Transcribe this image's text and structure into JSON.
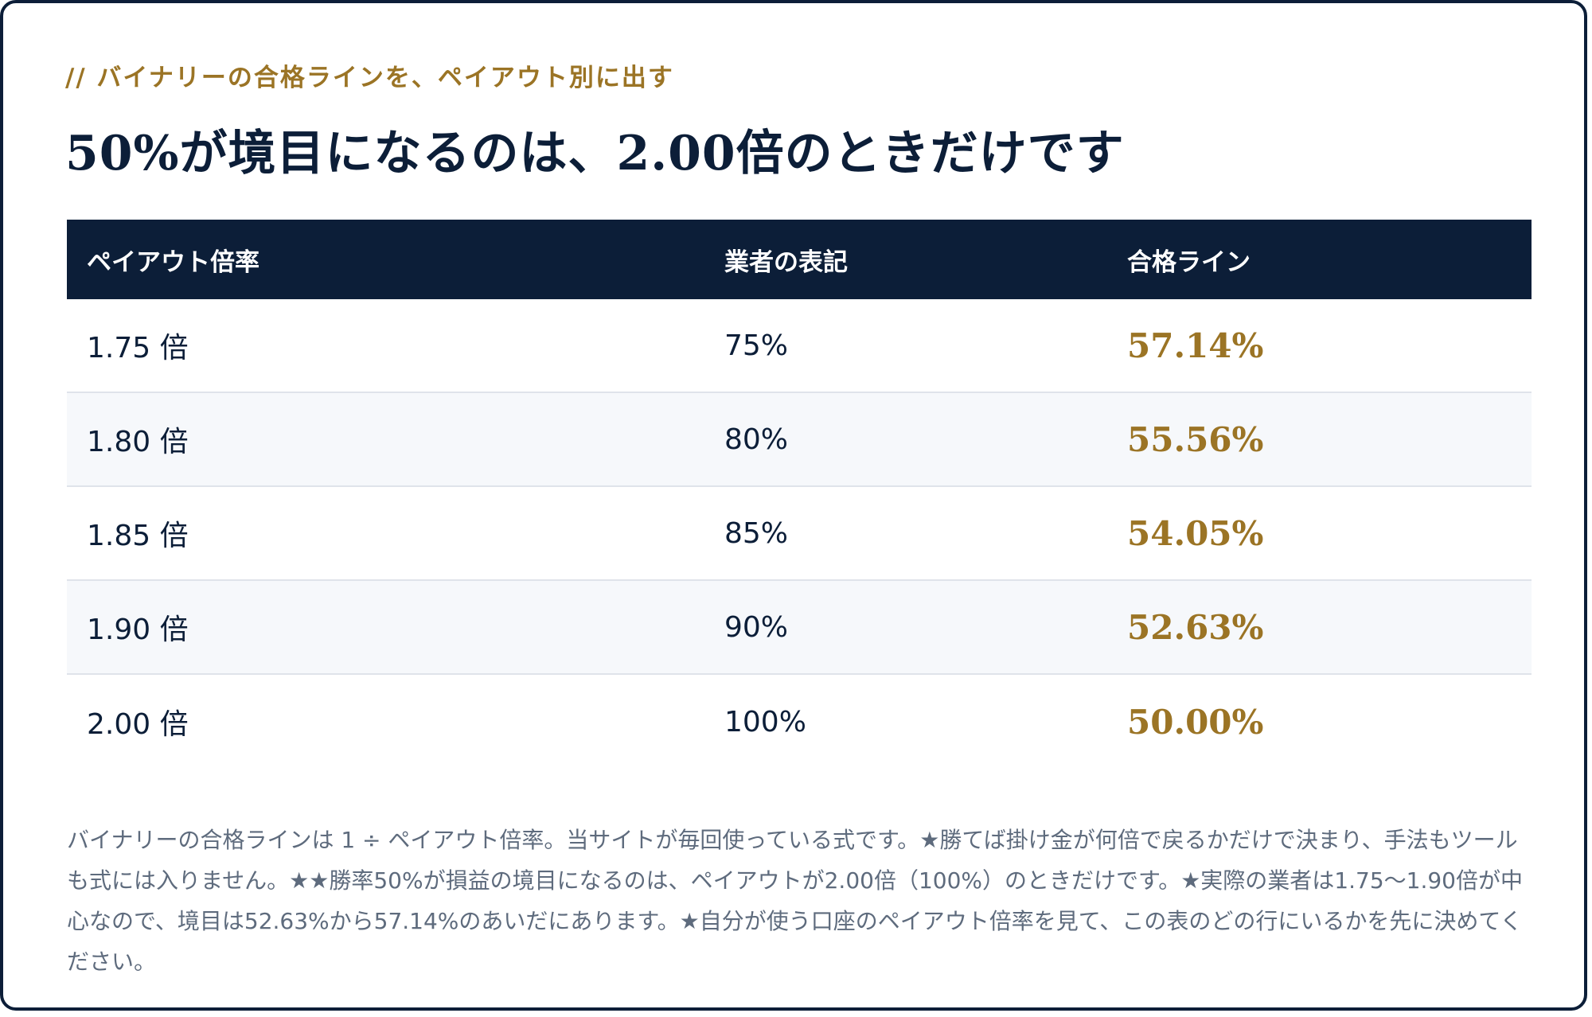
{
  "kicker": "// バイナリーの合格ラインを、ペイアウト別に出す",
  "heading": "50%が境目になるのは、2.00倍のときだけです",
  "table": {
    "headers": [
      "ペイアウト倍率",
      "業者の表記",
      "合格ライン"
    ],
    "rows": [
      {
        "multiplier": "1.75 倍",
        "label": "75%",
        "line": "57.14%"
      },
      {
        "multiplier": "1.80 倍",
        "label": "80%",
        "line": "55.56%"
      },
      {
        "multiplier": "1.85 倍",
        "label": "85%",
        "line": "54.05%"
      },
      {
        "multiplier": "1.90 倍",
        "label": "90%",
        "line": "52.63%"
      },
      {
        "multiplier": "2.00 倍",
        "label": "100%",
        "line": "50.00%"
      }
    ]
  },
  "note": "バイナリーの合格ラインは 1 ÷ ペイアウト倍率。当サイトが毎回使っている式です。★勝てば掛け金が何倍で戻るかだけで決まり、手法もツールも式には入りません。★★勝率50%が損益の境目になるのは、ペイアウトが2.00倍（100%）のときだけです。★実際の業者は1.75〜1.90倍が中心なので、境目は52.63%から57.14%のあいだにあります。★自分が使う口座のペイアウト倍率を見て、この表のどの行にいるかを先に決めてください。",
  "colors": {
    "navy": "#0c1e38",
    "gold": "#9b7425",
    "muted": "#5e6b7d",
    "row_alt": "#f6f8fb"
  }
}
